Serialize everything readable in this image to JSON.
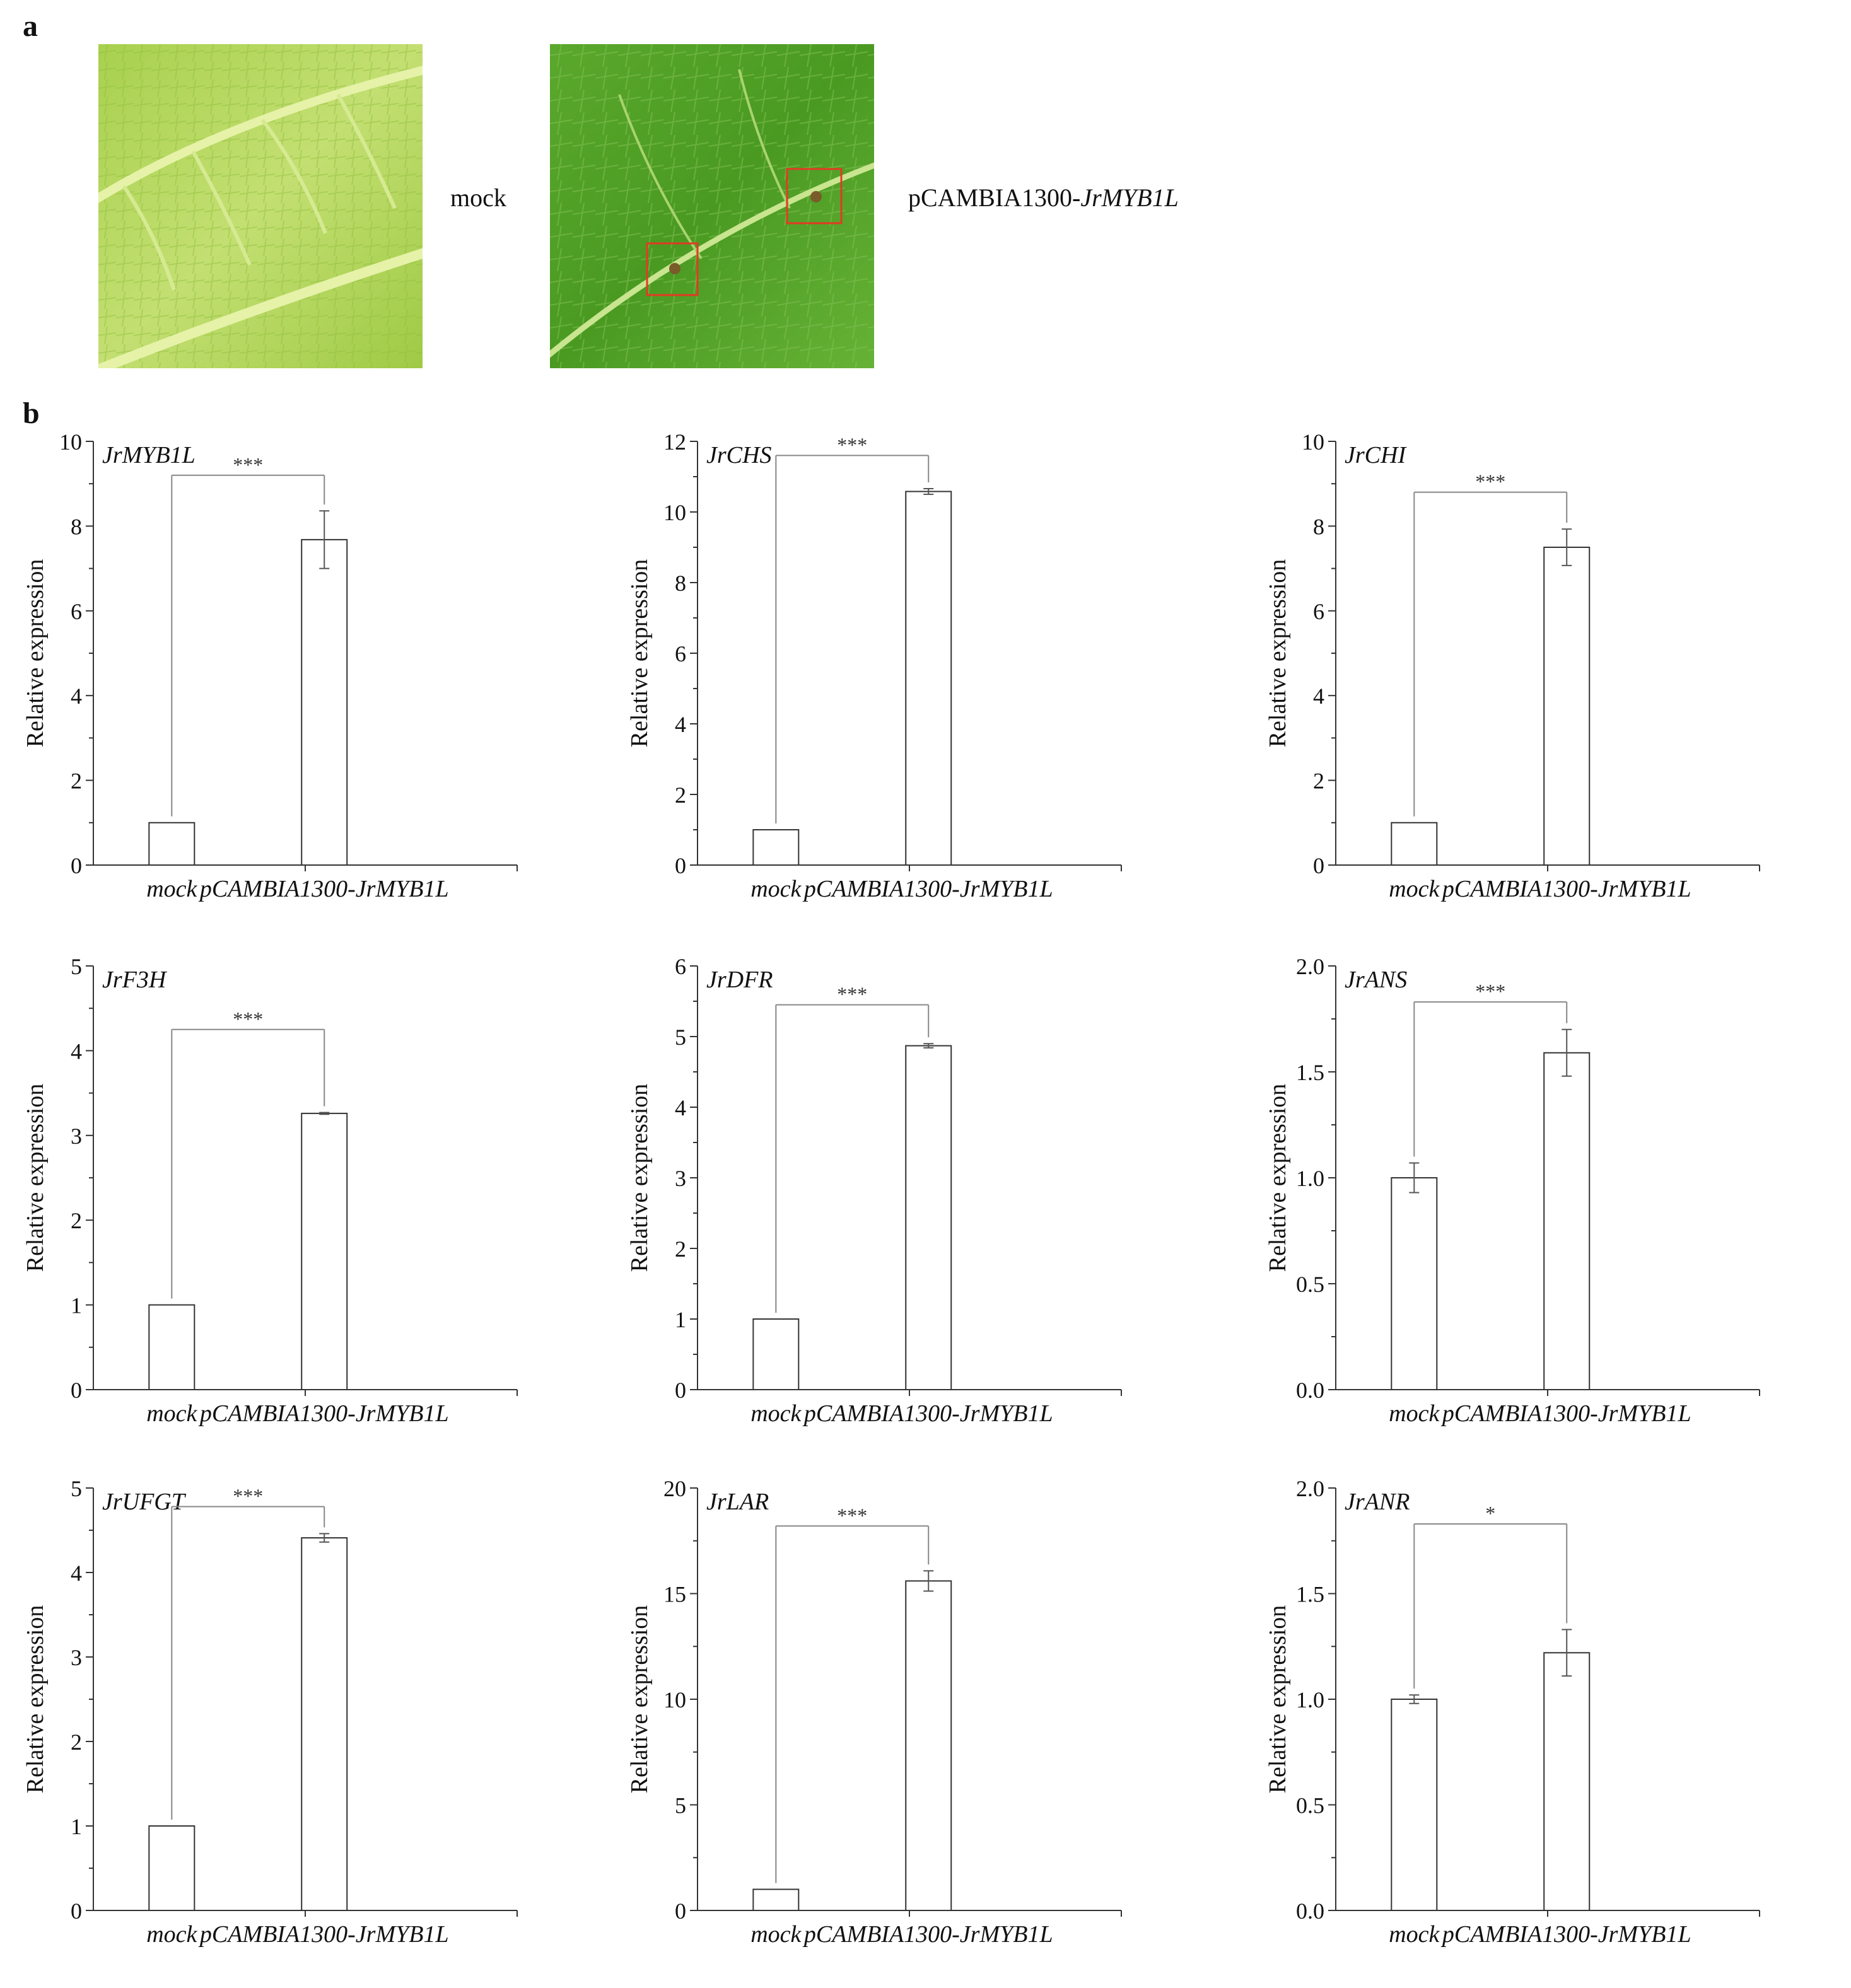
{
  "panel_a": {
    "letter": "a",
    "left_caption": "mock",
    "right_caption_prefix": "pCAMBIA1300-",
    "right_caption_gene": "JrMYB1L",
    "colors": {
      "leaf_light": "#b5d862",
      "leaf_dark": "#4c9a26",
      "marker_box": "#e23a22"
    }
  },
  "panel_b": {
    "letter": "b"
  },
  "chart_data": [
    {
      "type": "bar",
      "title": "JrMYB1L",
      "ylabel": "Relative expression",
      "xlabel": "",
      "categories": [
        "mock",
        "pCAMBIA1300-JrMYB1L"
      ],
      "values": [
        1,
        7.68
      ],
      "errors": [
        0,
        0.68
      ],
      "ylim": [
        0,
        10
      ],
      "yticks": [
        "0",
        "2",
        "4",
        "6",
        "8",
        "10"
      ],
      "significance": "***",
      "bracket_top": 9.2
    },
    {
      "type": "bar",
      "title": "JrCHS",
      "ylabel": "Relative expression",
      "xlabel": "",
      "categories": [
        "mock",
        "pCAMBIA1300-JrMYB1L"
      ],
      "values": [
        1,
        10.58
      ],
      "errors": [
        0,
        0.08
      ],
      "ylim": [
        0,
        12
      ],
      "yticks": [
        "0",
        "2",
        "4",
        "6",
        "8",
        "10",
        "12"
      ],
      "significance": "***",
      "bracket_top": 11.6
    },
    {
      "type": "bar",
      "title": "JrCHI",
      "ylabel": "Relative expression",
      "xlabel": "",
      "categories": [
        "mock",
        "pCAMBIA1300-JrMYB1L"
      ],
      "values": [
        1,
        7.5
      ],
      "errors": [
        0,
        0.43
      ],
      "ylim": [
        0,
        10
      ],
      "yticks": [
        "0",
        "2",
        "4",
        "6",
        "8",
        "10"
      ],
      "significance": "***",
      "bracket_top": 8.8
    },
    {
      "type": "bar",
      "title": "JrF3H",
      "ylabel": "Relative expression",
      "xlabel": "",
      "categories": [
        "mock",
        "pCAMBIA1300-JrMYB1L"
      ],
      "values": [
        1,
        3.26
      ],
      "errors": [
        0,
        0.01
      ],
      "ylim": [
        0,
        5
      ],
      "yticks": [
        "0",
        "1",
        "2",
        "3",
        "4",
        "5"
      ],
      "significance": "***",
      "bracket_top": 4.25
    },
    {
      "type": "bar",
      "title": "JrDFR",
      "ylabel": "Relative expression",
      "xlabel": "",
      "categories": [
        "mock",
        "pCAMBIA1300-JrMYB1L"
      ],
      "values": [
        1,
        4.87
      ],
      "errors": [
        0,
        0.03
      ],
      "ylim": [
        0,
        6
      ],
      "yticks": [
        "0",
        "1",
        "2",
        "3",
        "4",
        "5",
        "6"
      ],
      "significance": "***",
      "bracket_top": 5.45
    },
    {
      "type": "bar",
      "title": "JrANS",
      "ylabel": "Relative expression",
      "xlabel": "",
      "categories": [
        "mock",
        "pCAMBIA1300-JrMYB1L"
      ],
      "values": [
        1.0,
        1.59
      ],
      "errors": [
        0.07,
        0.11
      ],
      "ylim": [
        0,
        2.0
      ],
      "yticks": [
        "0.0",
        "0.5",
        "1.0",
        "1.5",
        "2.0"
      ],
      "significance": "***",
      "bracket_top": 1.83
    },
    {
      "type": "bar",
      "title": "JrUFGT",
      "ylabel": "Relative expression",
      "xlabel": "",
      "categories": [
        "mock",
        "pCAMBIA1300-JrMYB1L"
      ],
      "values": [
        1,
        4.41
      ],
      "errors": [
        0,
        0.05
      ],
      "ylim": [
        0,
        5
      ],
      "yticks": [
        "0",
        "1",
        "2",
        "3",
        "4",
        "5"
      ],
      "significance": "***",
      "bracket_top": 4.78
    },
    {
      "type": "bar",
      "title": "JrLAR",
      "ylabel": "Relative expression",
      "xlabel": "",
      "categories": [
        "mock",
        "pCAMBIA1300-JrMYB1L"
      ],
      "values": [
        1,
        15.6
      ],
      "errors": [
        0,
        0.48
      ],
      "ylim": [
        0,
        20
      ],
      "yticks": [
        "0",
        "5",
        "10",
        "15",
        "20"
      ],
      "significance": "***",
      "bracket_top": 18.2
    },
    {
      "type": "bar",
      "title": "JrANR",
      "ylabel": "Relative expression",
      "xlabel": "",
      "categories": [
        "mock",
        "pCAMBIA1300-JrMYB1L"
      ],
      "values": [
        1.0,
        1.22
      ],
      "errors": [
        0.02,
        0.11
      ],
      "ylim": [
        0,
        2.0
      ],
      "yticks": [
        "0.0",
        "0.5",
        "1.0",
        "1.5",
        "2.0"
      ],
      "significance": "*",
      "bracket_top": 1.83
    }
  ]
}
